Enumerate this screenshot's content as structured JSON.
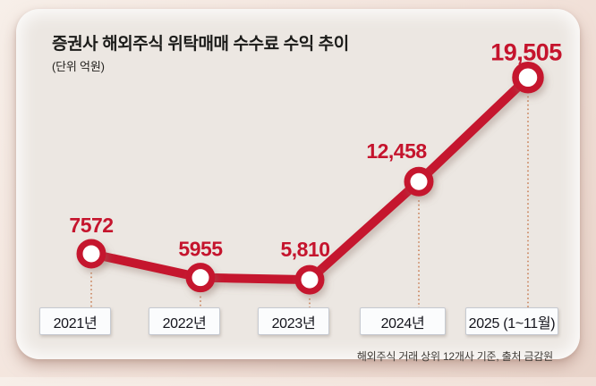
{
  "header": {
    "title": "증권사 해외주식 위탁매매 수수료 수익 추이",
    "unit": "(단위 억원)"
  },
  "footer": {
    "source": "해외주식 거래 상위 12개사 기준, 출처 금감원"
  },
  "chart_data": {
    "type": "line",
    "title": "증권사 해외주식 위탁매매 수수료 수익 추이",
    "unit_label": "(단위 억원)",
    "categories": [
      "2021년",
      "2022년",
      "2023년",
      "2024년",
      "2025 (1~11월)"
    ],
    "values": [
      7572,
      5955,
      5810,
      12458,
      19505
    ],
    "labels": [
      "7572",
      "5955",
      "5,810",
      "12,458",
      "19,505"
    ],
    "ylim": [
      4000,
      21000
    ],
    "grid": false,
    "legend": false,
    "source_note": "해외주식 거래 상위 12개사 기준, 출처 금감원"
  },
  "colors": {
    "accent_red": "#c5142d",
    "marker_fill": "#ffffff",
    "connector_dotted": "#c9825a",
    "card_bg": "#ece7e2",
    "page_bg": "#f2e2da",
    "box_bg": "#fbfcfd",
    "box_border": "#c6cad1",
    "title_text": "#1c1c1a",
    "source_text": "#3f3b36"
  }
}
